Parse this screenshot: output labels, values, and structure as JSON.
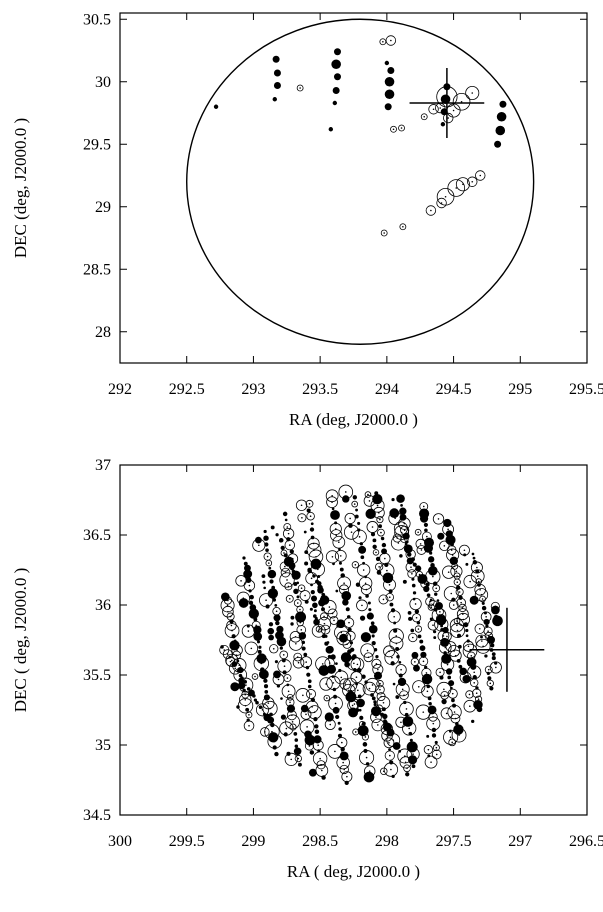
{
  "chart_data": [
    {
      "type": "scatter",
      "title": "",
      "xlabel": "RA (deg, J2000.0 )",
      "ylabel": "DEC (deg, J2000.0 )",
      "xlim": [
        292,
        295.5
      ],
      "ylim": [
        27.75,
        30.55
      ],
      "x_ticks": [
        "292",
        "292.5",
        "293",
        "293.5",
        "294",
        "294.5",
        "295",
        "295.5"
      ],
      "y_ticks": [
        "28",
        "28.5",
        "29",
        "29.5",
        "30",
        "30.5"
      ],
      "x_reversed": false,
      "grid": false,
      "field_circle": {
        "center_ra": 293.8,
        "center_dec": 29.2,
        "radius_deg": 1.3
      },
      "target_cross": {
        "ra": 294.45,
        "dec": 29.83,
        "half_width_ra": 0.28,
        "half_height_dec": 0.28
      },
      "filled_points": [
        [
          292.72,
          29.8,
          1
        ],
        [
          293.17,
          30.18,
          2
        ],
        [
          293.18,
          30.07,
          2
        ],
        [
          293.18,
          29.97,
          2
        ],
        [
          293.16,
          29.86,
          1
        ],
        [
          293.63,
          30.24,
          2
        ],
        [
          293.62,
          30.14,
          3
        ],
        [
          293.63,
          30.04,
          2
        ],
        [
          293.62,
          29.93,
          2
        ],
        [
          293.61,
          29.83,
          1
        ],
        [
          293.58,
          29.62,
          1
        ],
        [
          294.0,
          30.15,
          1
        ],
        [
          294.03,
          30.09,
          2
        ],
        [
          294.02,
          30.0,
          3
        ],
        [
          294.02,
          29.9,
          3
        ],
        [
          294.01,
          29.8,
          2
        ],
        [
          294.44,
          29.86,
          3
        ],
        [
          294.45,
          29.96,
          2
        ],
        [
          294.43,
          29.76,
          2
        ],
        [
          294.42,
          29.66,
          1
        ],
        [
          294.87,
          29.82,
          2
        ],
        [
          294.86,
          29.72,
          3
        ],
        [
          294.85,
          29.61,
          3
        ],
        [
          294.83,
          29.5,
          2
        ]
      ],
      "open_points": [
        [
          293.35,
          29.95,
          1
        ],
        [
          293.97,
          30.32,
          1
        ],
        [
          294.03,
          30.33,
          2
        ],
        [
          294.05,
          29.62,
          1
        ],
        [
          294.11,
          29.63,
          1
        ],
        [
          294.35,
          29.78,
          2
        ],
        [
          294.28,
          29.72,
          1
        ],
        [
          294.45,
          29.88,
          5
        ],
        [
          294.56,
          29.84,
          4
        ],
        [
          294.64,
          29.91,
          3
        ],
        [
          294.4,
          29.79,
          2
        ],
        [
          294.5,
          29.77,
          3
        ],
        [
          294.46,
          29.71,
          2
        ],
        [
          294.7,
          29.25,
          2
        ],
        [
          294.64,
          29.2,
          2
        ],
        [
          294.57,
          29.18,
          3
        ],
        [
          294.52,
          29.15,
          4
        ],
        [
          294.44,
          29.08,
          4
        ],
        [
          294.41,
          29.03,
          2
        ],
        [
          294.33,
          28.97,
          2
        ],
        [
          294.12,
          28.84,
          1
        ],
        [
          293.98,
          28.79,
          1
        ]
      ]
    },
    {
      "type": "scatter",
      "title": "",
      "xlabel": "RA ( deg, J2000.0 )",
      "ylabel": "DEC ( deg, J2000.0 )",
      "xlim": [
        300,
        296.5
      ],
      "ylim": [
        34.5,
        37
      ],
      "x_ticks": [
        "300",
        "299.5",
        "299",
        "298.5",
        "298",
        "297.5",
        "297",
        "296.5"
      ],
      "y_ticks": [
        "34.5",
        "35",
        "35.5",
        "36",
        "36.5",
        "37"
      ],
      "x_reversed": true,
      "grid": false,
      "field_circle": {
        "center_ra": 298.2,
        "center_dec": 35.77,
        "radius_deg": 1.05
      },
      "target_cross": {
        "ra": 297.1,
        "dec": 35.68,
        "half_width_ra": 0.28,
        "half_height_dec": 0.3
      },
      "scan_tracks": [
        {
          "ra_top": 299.46,
          "dec_top": 36.44,
          "ra_bottom": 299.16,
          "dec_bottom": 35.12
        },
        {
          "ra_top": 299.3,
          "dec_top": 36.56,
          "ra_bottom": 299.0,
          "dec_bottom": 35.0
        },
        {
          "ra_top": 299.12,
          "dec_top": 36.66,
          "ra_bottom": 298.82,
          "dec_bottom": 34.9
        },
        {
          "ra_top": 298.95,
          "dec_top": 36.74,
          "ra_bottom": 298.65,
          "dec_bottom": 34.82
        },
        {
          "ra_top": 298.78,
          "dec_top": 36.79,
          "ra_bottom": 298.48,
          "dec_bottom": 34.77
        },
        {
          "ra_top": 298.6,
          "dec_top": 36.82,
          "ra_bottom": 298.3,
          "dec_bottom": 34.73
        },
        {
          "ra_top": 298.42,
          "dec_top": 36.83,
          "ra_bottom": 298.12,
          "dec_bottom": 34.72
        },
        {
          "ra_top": 298.25,
          "dec_top": 36.82,
          "ra_bottom": 297.95,
          "dec_bottom": 34.73
        },
        {
          "ra_top": 298.08,
          "dec_top": 36.8,
          "ra_bottom": 297.78,
          "dec_bottom": 34.75
        },
        {
          "ra_top": 297.9,
          "dec_top": 36.76,
          "ra_bottom": 297.6,
          "dec_bottom": 34.8
        },
        {
          "ra_top": 297.73,
          "dec_top": 36.7,
          "ra_bottom": 297.43,
          "dec_bottom": 34.86
        },
        {
          "ra_top": 297.55,
          "dec_top": 36.62,
          "ra_bottom": 297.25,
          "dec_bottom": 34.95
        },
        {
          "ra_top": 297.38,
          "dec_top": 36.5,
          "ra_bottom": 297.08,
          "dec_bottom": 35.06
        },
        {
          "ra_top": 297.2,
          "dec_top": 36.35,
          "ra_bottom": 296.98,
          "dec_bottom": 35.25
        }
      ],
      "diagonal_tracks": [
        {
          "ra_top": 299.4,
          "dec_top": 35.95,
          "ra_bottom": 298.9,
          "dec_bottom": 35.2
        },
        {
          "ra_top": 298.85,
          "dec_top": 36.55,
          "ra_bottom": 298.15,
          "dec_bottom": 35.1
        },
        {
          "ra_top": 298.6,
          "dec_top": 36.3,
          "ra_bottom": 297.9,
          "dec_bottom": 34.95
        },
        {
          "ra_top": 297.9,
          "dec_top": 36.55,
          "ra_bottom": 297.4,
          "dec_bottom": 35.45
        }
      ]
    }
  ]
}
